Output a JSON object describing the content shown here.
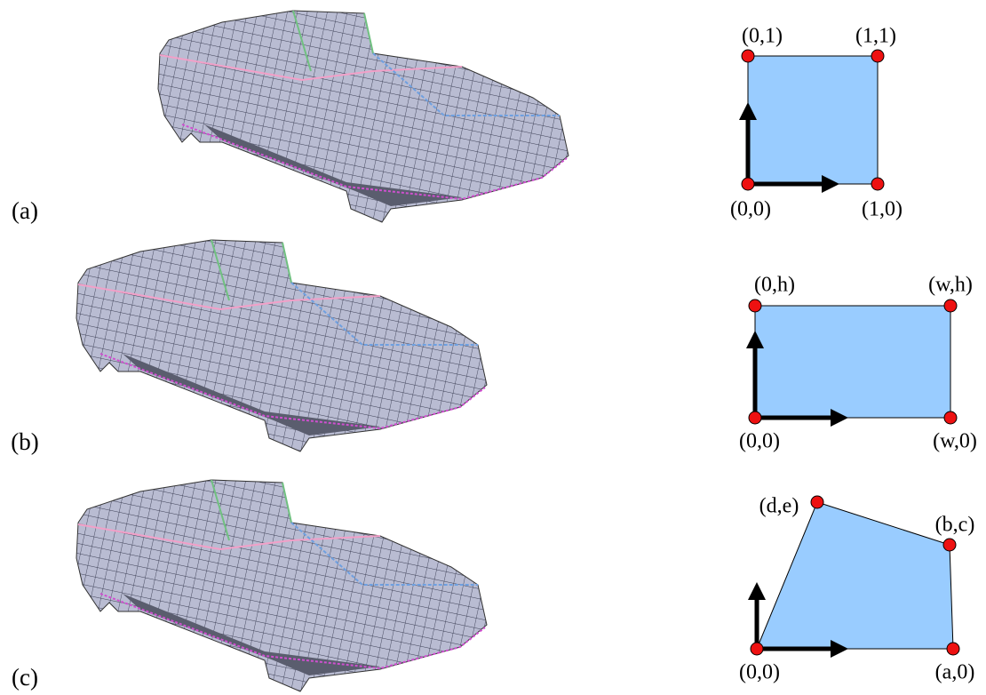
{
  "panels": [
    {
      "label": "(a)",
      "corners": [
        "(0,1)",
        "(1,1)",
        "(0,0)",
        "(1,0)"
      ]
    },
    {
      "label": "(b)",
      "corners": [
        "(0,h)",
        "(w,h)",
        "(0,0)",
        "(w,0)"
      ]
    },
    {
      "label": "(c)",
      "corners": [
        "(d,e)",
        "(b,c)",
        "(0,0)",
        "(a,0)"
      ]
    }
  ]
}
